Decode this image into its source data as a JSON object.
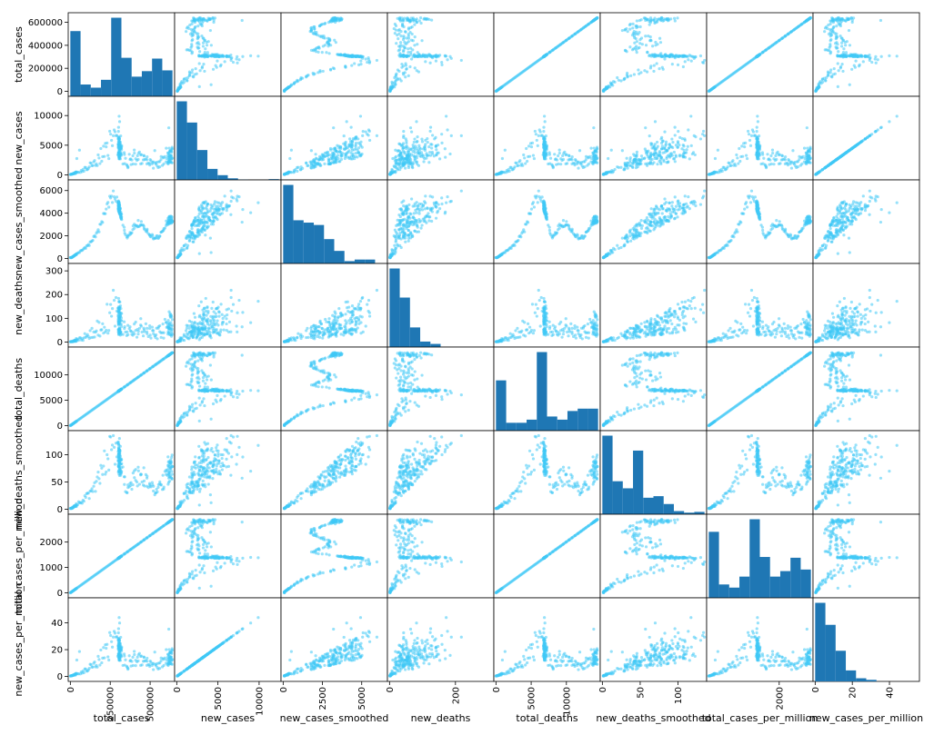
{
  "chart_data": {
    "type": "scatter-matrix",
    "colors": {
      "hist": "#1f77b4",
      "scatter": "#40c8f5"
    },
    "variables": [
      {
        "name": "total_cases",
        "range": [
          0,
          640000
        ],
        "yticks": [
          0,
          200000,
          400000,
          600000
        ],
        "xticks": [
          0,
          250000,
          500000
        ],
        "hist": [
          0.83,
          0.15,
          0.11,
          0.21,
          1.0,
          0.49,
          0.25,
          0.32,
          0.48,
          0.33
        ]
      },
      {
        "name": "new_cases",
        "range": [
          0,
          12400
        ],
        "yticks": [
          0,
          5000,
          10000
        ],
        "xticks": [
          0,
          5000,
          10000
        ],
        "hist": [
          1.0,
          0.73,
          0.38,
          0.14,
          0.06,
          0.02,
          0.005,
          0,
          0,
          0.01
        ]
      },
      {
        "name": "new_cases_smoothed",
        "range": [
          0,
          6500
        ],
        "yticks": [
          0,
          2000,
          4000,
          6000
        ],
        "xticks": [
          0,
          2500,
          5000
        ],
        "hist": [
          1.0,
          0.55,
          0.52,
          0.49,
          0.31,
          0.16,
          0.03,
          0.05,
          0.05,
          0
        ]
      },
      {
        "name": "new_deaths",
        "range": [
          0,
          310
        ],
        "yticks": [
          0,
          100,
          200,
          300
        ],
        "xticks": [
          0,
          200
        ],
        "hist": [
          1.0,
          0.63,
          0.25,
          0.07,
          0.04,
          0,
          0,
          0,
          0,
          0
        ]
      },
      {
        "name": "total_deaths",
        "range": [
          0,
          14500
        ],
        "yticks": [
          0,
          5000,
          10000
        ],
        "xticks": [
          0,
          5000,
          10000
        ],
        "hist": [
          0.64,
          0.1,
          0.1,
          0.14,
          1.0,
          0.18,
          0.14,
          0.25,
          0.28,
          0.28
        ]
      },
      {
        "name": "new_deaths_smoothed",
        "range": [
          0,
          135
        ],
        "yticks": [
          0,
          50,
          100
        ],
        "xticks": [
          0,
          50,
          100
        ],
        "hist": [
          1.0,
          0.42,
          0.33,
          0.81,
          0.21,
          0.23,
          0.13,
          0.04,
          0.02,
          0.03
        ]
      },
      {
        "name": "total_cases_per_million",
        "range": [
          0,
          2900
        ],
        "yticks": [
          0,
          1000,
          2000
        ],
        "xticks": [
          2000
        ],
        "hist": [
          0.84,
          0.17,
          0.13,
          0.27,
          1.0,
          0.52,
          0.27,
          0.34,
          0.51,
          0.36
        ]
      },
      {
        "name": "new_cases_per_million",
        "range": [
          0,
          55
        ],
        "yticks": [
          0,
          20,
          40
        ],
        "xticks": [
          0,
          20,
          40
        ],
        "hist": [
          1.0,
          0.72,
          0.39,
          0.14,
          0.04,
          0.02,
          0,
          0,
          0,
          0
        ]
      }
    ]
  }
}
